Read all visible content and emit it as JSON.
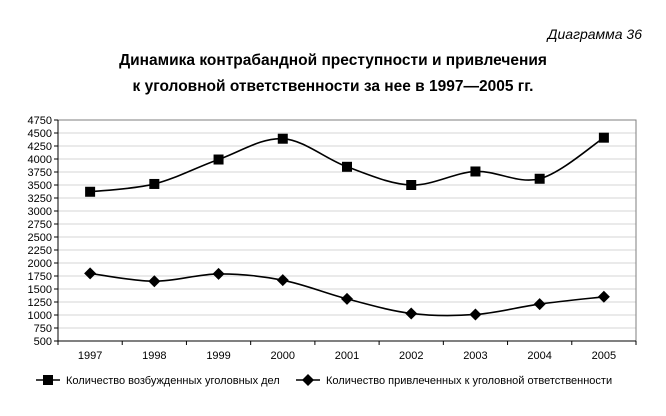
{
  "corner_label": "Диаграмма 36",
  "chart_data": {
    "type": "line",
    "title_lines": [
      "Динамика контрабандной преступности и привлечения",
      "к уголовной ответственности за нее в 1997—2005 гг."
    ],
    "categories": [
      "1997",
      "1998",
      "1999",
      "2000",
      "2001",
      "2002",
      "2003",
      "2004",
      "2005"
    ],
    "ylim": [
      500,
      4750
    ],
    "yticks": [
      "500",
      "750",
      "1000",
      "1250",
      "1500",
      "1750",
      "2000",
      "2250",
      "2500",
      "2750",
      "3000",
      "3250",
      "3500",
      "3750",
      "4000",
      "4250",
      "4500",
      "4750"
    ],
    "grid": true,
    "legend_position": "bottom",
    "series": [
      {
        "name": "Количество возбужденных уголовных дел",
        "marker": "square",
        "color": "#000000",
        "values": [
          3370,
          3520,
          3990,
          4390,
          3850,
          3500,
          3760,
          3620,
          4410
        ]
      },
      {
        "name": "Количество привлеченных к уголовной ответственности",
        "marker": "diamond",
        "color": "#000000",
        "values": [
          1800,
          1650,
          1790,
          1670,
          1310,
          1030,
          1010,
          1210,
          1350
        ]
      }
    ]
  }
}
